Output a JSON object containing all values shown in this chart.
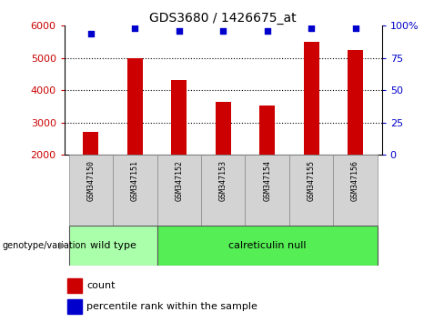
{
  "title": "GDS3680 / 1426675_at",
  "samples": [
    "GSM347150",
    "GSM347151",
    "GSM347152",
    "GSM347153",
    "GSM347154",
    "GSM347155",
    "GSM347156"
  ],
  "counts": [
    2700,
    5000,
    4300,
    3650,
    3520,
    5500,
    5250
  ],
  "percentile_ranks": [
    94,
    98,
    96,
    96,
    96,
    98,
    98
  ],
  "ylim_left": [
    2000,
    6000
  ],
  "ylim_right": [
    0,
    100
  ],
  "yticks_left": [
    2000,
    3000,
    4000,
    5000,
    6000
  ],
  "yticks_right": [
    0,
    25,
    50,
    75,
    100
  ],
  "bar_color": "#cc0000",
  "dot_color": "#0000cc",
  "bar_width": 0.35,
  "groups": [
    {
      "label": "wild type",
      "start": 0,
      "end": 1,
      "color": "#aaffaa"
    },
    {
      "label": "calreticulin null",
      "start": 2,
      "end": 6,
      "color": "#55ee55"
    }
  ],
  "genotype_label": "genotype/variation",
  "legend_count_label": "count",
  "legend_pct_label": "percentile rank within the sample",
  "title_fontsize": 10,
  "axis_fontsize": 8,
  "sample_fontsize": 6,
  "group_fontsize": 8,
  "legend_fontsize": 8
}
